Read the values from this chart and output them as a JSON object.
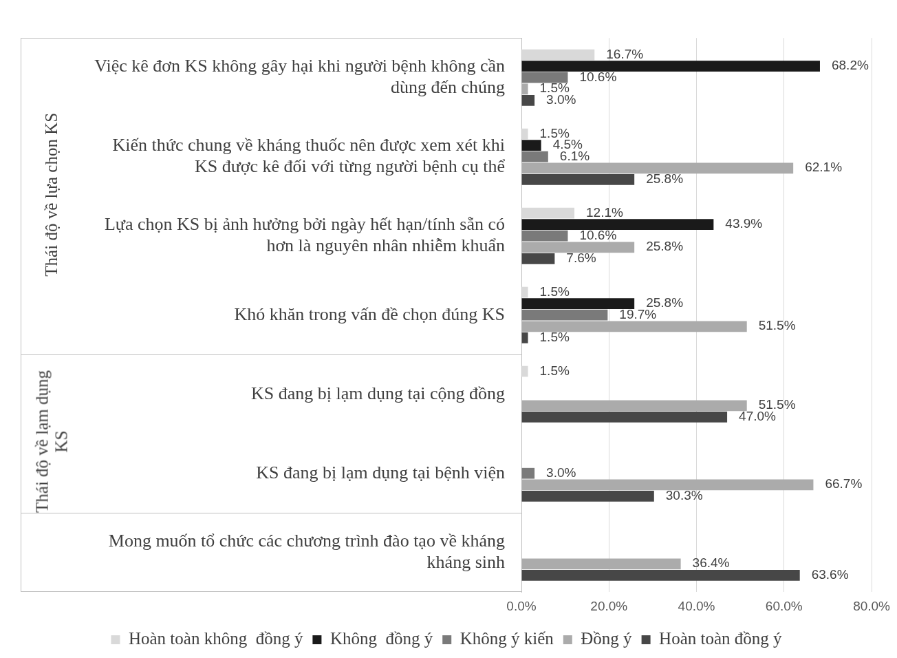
{
  "chart_data": {
    "type": "bar",
    "orientation": "horizontal",
    "categories": [
      "Việc kê đơn KS không gây hại khi người bệnh không cần dùng đến chúng",
      "Kiến thức chung về kháng thuốc nên được xem xét khi KS được kê đối với từng người bệnh cụ thể",
      "Lựa chọn KS bị ảnh hưởng bởi ngày hết hạn/tính sẵn có hơn là nguyên nhân nhiễm khuẩn",
      "Khó khăn trong vấn đề chọn đúng KS",
      "KS đang bị lạm dụng tại cộng đồng",
      "KS đang bị lạm dụng tại bệnh viện",
      "Mong muốn tổ chức các chương trình đào tạo về kháng kháng sinh"
    ],
    "series": [
      {
        "name": "Hoàn toàn không  đồng ý",
        "color": "#d9d9d9",
        "values": [
          16.7,
          1.5,
          12.1,
          1.5,
          1.5,
          null,
          null
        ],
        "value_labels": [
          "16.7%",
          "1.5%",
          "12.1%",
          "1.5%",
          "1.5%",
          null,
          null
        ]
      },
      {
        "name": "Không  đồng ý",
        "color": "#1a1a1a",
        "values": [
          68.2,
          4.5,
          43.9,
          25.8,
          null,
          null,
          null
        ],
        "value_labels": [
          "68.2%",
          "4.5%",
          "43.9%",
          "25.8%",
          null,
          null,
          null
        ]
      },
      {
        "name": "Không ý kiến",
        "color": "#7a7a7a",
        "values": [
          10.6,
          6.1,
          10.6,
          19.7,
          null,
          3.0,
          null
        ],
        "value_labels": [
          "10.6%",
          "6.1%",
          "10.6%",
          "19.7%",
          null,
          "3.0%",
          null
        ]
      },
      {
        "name": "Đồng ý",
        "color": "#ababab",
        "values": [
          1.5,
          62.1,
          25.8,
          51.5,
          51.5,
          66.7,
          36.4
        ],
        "value_labels": [
          "1.5%",
          "62.1%",
          "25.8%",
          "51.5%",
          "51.5%",
          "66.7%",
          "36.4%"
        ]
      },
      {
        "name": "Hoàn toàn đồng ý",
        "color": "#474747",
        "values": [
          3.0,
          25.8,
          7.6,
          1.5,
          47.0,
          30.3,
          63.6
        ],
        "value_labels": [
          "3.0%",
          "25.8%",
          "7.6%",
          "1.5%",
          "47.0%",
          "30.3%",
          "63.6%"
        ]
      }
    ],
    "xlim": [
      0,
      80
    ],
    "xticks": [
      {
        "value": 0,
        "label": "0.0%"
      },
      {
        "value": 20,
        "label": "20.0%"
      },
      {
        "value": 40,
        "label": "40.0%"
      },
      {
        "value": 60,
        "label": "60.0%"
      },
      {
        "value": 80,
        "label": "80.0%"
      }
    ],
    "grid": "x",
    "legend": "bottom",
    "annotations": [
      "Thái độ về lựa chọn KS",
      "Thái độ về lạm dụng KS"
    ]
  }
}
